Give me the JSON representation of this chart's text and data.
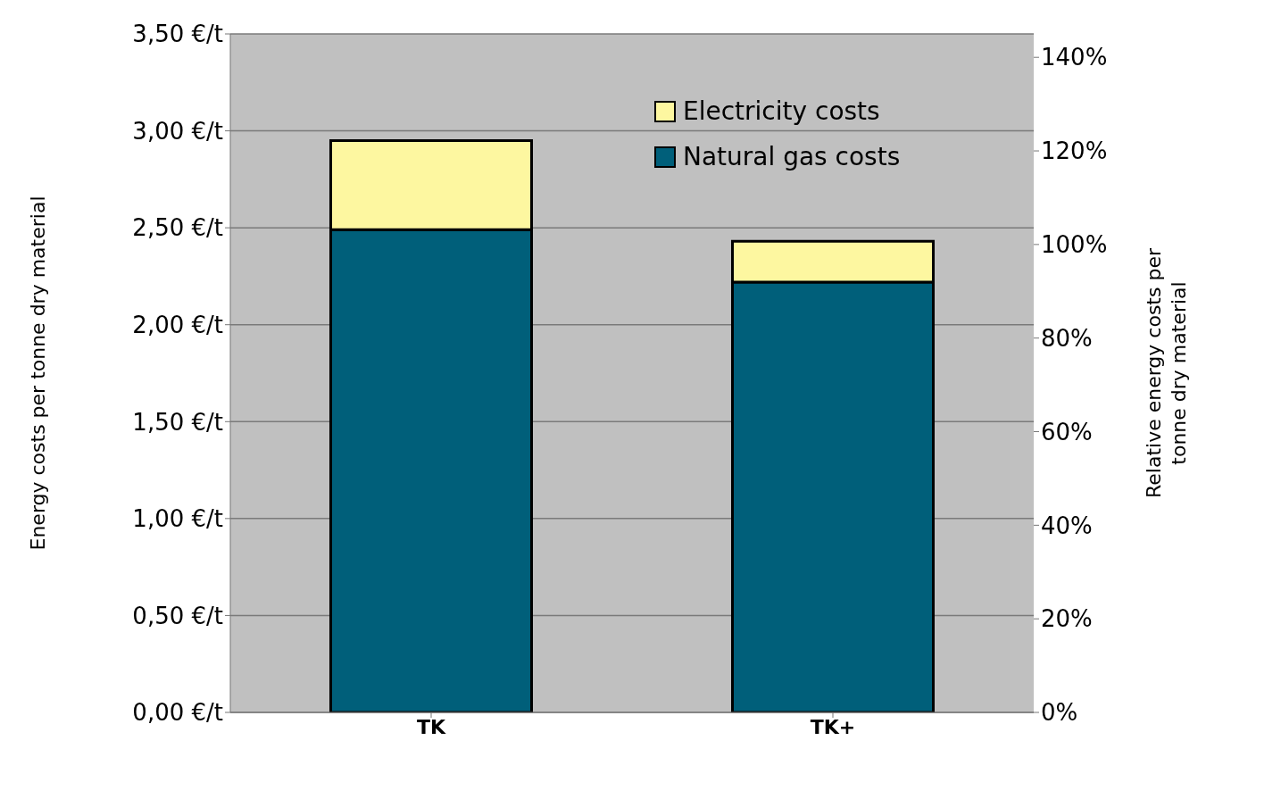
{
  "chart_data": {
    "type": "bar",
    "stacked": true,
    "categories": [
      "TK",
      "TK+"
    ],
    "series": [
      {
        "name": "Natural gas costs",
        "color": "#005f7a",
        "values": [
          2.49,
          2.22
        ]
      },
      {
        "name": "Electricity costs",
        "color": "#fdf7a0",
        "values": [
          0.46,
          0.21
        ]
      }
    ],
    "ylabel": "Energy costs per tonne dry material",
    "y2label": "Relative energy costs per tonne dry material",
    "ylim": [
      0,
      3.5
    ],
    "yticks": [
      {
        "value": 0,
        "label": "0,00 €/t"
      },
      {
        "value": 0.5,
        "label": "0,50 €/t"
      },
      {
        "value": 1,
        "label": "1,00 €/t"
      },
      {
        "value": 1.5,
        "label": "1,50 €/t"
      },
      {
        "value": 2,
        "label": "2,00 €/t"
      },
      {
        "value": 2.5,
        "label": "2,50 €/t"
      },
      {
        "value": 3,
        "label": "3,00 €/t"
      },
      {
        "value": 3.5,
        "label": "3,50 €/t"
      }
    ],
    "y2lim": [
      0,
      145
    ],
    "y2ticks": [
      {
        "value": 0,
        "label": "0%"
      },
      {
        "value": 20,
        "label": "20%"
      },
      {
        "value": 40,
        "label": "40%"
      },
      {
        "value": 60,
        "label": "60%"
      },
      {
        "value": 80,
        "label": "80%"
      },
      {
        "value": 100,
        "label": "100%"
      },
      {
        "value": 120,
        "label": "120%"
      },
      {
        "value": 140,
        "label": "140%"
      }
    ],
    "grid": "y",
    "legend": "top right"
  }
}
